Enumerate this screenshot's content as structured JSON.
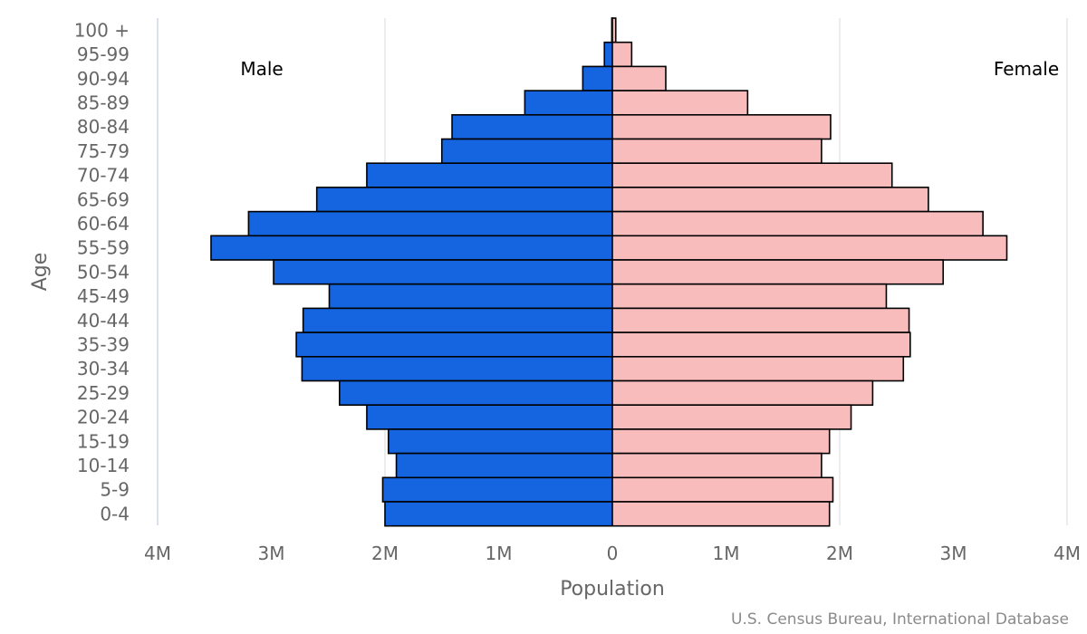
{
  "chart_data": {
    "type": "bar",
    "orientation": "horizontal-pyramid",
    "title": "",
    "xlabel": "Population",
    "ylabel": "Age",
    "categories": [
      "100 +",
      "95-99",
      "90-94",
      "85-89",
      "80-84",
      "75-79",
      "70-74",
      "65-69",
      "60-64",
      "55-59",
      "50-54",
      "45-49",
      "40-44",
      "35-39",
      "30-34",
      "25-29",
      "20-24",
      "15-19",
      "10-14",
      "5-9",
      "0-4"
    ],
    "series": [
      {
        "name": "Male",
        "color": "#1565e0",
        "values": [
          0.005,
          0.07,
          0.26,
          0.77,
          1.41,
          1.5,
          2.16,
          2.6,
          3.2,
          3.53,
          2.98,
          2.49,
          2.72,
          2.78,
          2.73,
          2.4,
          2.16,
          1.97,
          1.9,
          2.02,
          2.0
        ]
      },
      {
        "name": "Female",
        "color": "#f8bcbc",
        "values": [
          0.03,
          0.17,
          0.47,
          1.19,
          1.92,
          1.84,
          2.46,
          2.78,
          3.26,
          3.47,
          2.91,
          2.41,
          2.61,
          2.62,
          2.56,
          2.29,
          2.1,
          1.91,
          1.84,
          1.94,
          1.91
        ]
      }
    ],
    "units": "millions",
    "xlim": [
      -4,
      4
    ],
    "xticks": [
      "4M",
      "3M",
      "2M",
      "1M",
      "0",
      "1M",
      "2M",
      "3M",
      "4M"
    ],
    "grid": true,
    "side_labels": {
      "left": "Male",
      "right": "Female"
    }
  },
  "credit": "U.S. Census Bureau, International Database"
}
